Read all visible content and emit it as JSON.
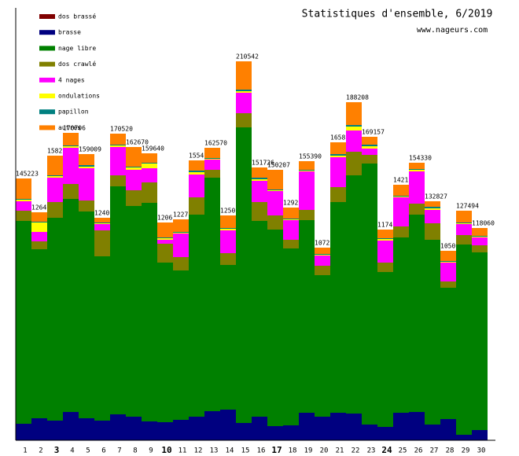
{
  "chart_data": {
    "type": "stacked-bar",
    "title": "Statistiques d'ensemble, 6/2019",
    "subtitle": "www.nageurs.com",
    "categories": [
      "1",
      "2",
      "3",
      "4",
      "5",
      "6",
      "7",
      "8",
      "9",
      "10",
      "11",
      "12",
      "13",
      "14",
      "15",
      "16",
      "17",
      "18",
      "19",
      "20",
      "21",
      "22",
      "23",
      "24",
      "25",
      "26",
      "27",
      "28",
      "29",
      "30"
    ],
    "ylim": [
      0,
      240350
    ],
    "bar_labels": [
      "145223",
      "1264",
      "1582",
      "170706",
      "159009",
      "1240",
      "170520",
      "162670",
      "159640",
      "1206",
      "1227",
      "1554",
      "162570",
      "1250",
      "210542",
      "151726",
      "150207",
      "1292",
      "155390",
      "1072",
      "1658",
      "188208",
      "169157",
      "1174",
      "1421",
      "154330",
      "132827",
      "1050",
      "127494",
      "118060"
    ],
    "series": [
      {
        "name": "dos brassé",
        "color": "#800000",
        "values": [
          0,
          0,
          0,
          0,
          0,
          0,
          0,
          0,
          0,
          0,
          0,
          0,
          0,
          0,
          0,
          0,
          0,
          0,
          0,
          0,
          0,
          0,
          0,
          0,
          0,
          0,
          0,
          0,
          0,
          0
        ]
      },
      {
        "name": "brasse",
        "color": "#000080",
        "values": [
          9177,
          12236,
          10925,
          15732,
          12236,
          10925,
          14421,
          13110,
          10488,
          10051,
          11362,
          13110,
          16169,
          17043,
          9614,
          13110,
          7866,
          8303,
          15295,
          13110,
          15295,
          14858,
          8740,
          7429,
          15295,
          15732,
          8740,
          11799,
          3059,
          5681
        ]
      },
      {
        "name": "nage libre",
        "color": "#008000",
        "values": [
          112746,
          93955,
          112746,
          118427,
          114931,
          91333,
          126730,
          117116,
          121486,
          88711,
          83030,
          112309,
          129789,
          80408,
          164312,
          108813,
          109250,
          98325,
          107065,
          78660,
          117116,
          132411,
          145084,
          86089,
          97451,
          109687,
          102695,
          72979,
          105754,
          98762
        ]
      },
      {
        "name": "dos crawlé",
        "color": "#808000",
        "values": [
          5681,
          4370,
          8740,
          8303,
          6118,
          14421,
          6118,
          8740,
          11362,
          10488,
          7429,
          9614,
          4370,
          6555,
          7866,
          10488,
          7866,
          4807,
          5681,
          5244,
          8303,
          13110,
          4807,
          5244,
          6118,
          6118,
          9177,
          3496,
          5244,
          3933
        ]
      },
      {
        "name": "4 nages",
        "color": "#ff00ff",
        "values": [
          5244,
          5244,
          13547,
          20102,
          17917,
          3496,
          15732,
          11362,
          7866,
          2185,
          13110,
          12673,
          5681,
          12673,
          11362,
          11799,
          13547,
          10925,
          21413,
          5681,
          16606,
          11799,
          3496,
          12236,
          16169,
          17917,
          7429,
          10488,
          6118,
          4370
        ]
      },
      {
        "name": "ondulations",
        "color": "#ffff00",
        "values": [
          874,
          5244,
          874,
          874,
          874,
          437,
          874,
          1311,
          2622,
          874,
          437,
          1311,
          437,
          874,
          874,
          874,
          437,
          437,
          437,
          437,
          874,
          2185,
          1311,
          874,
          437,
          874,
          874,
          437,
          437,
          437
        ]
      },
      {
        "name": "papillon",
        "color": "#008080",
        "values": [
          437,
          437,
          437,
          437,
          874,
          437,
          437,
          437,
          437,
          437,
          437,
          874,
          437,
          437,
          874,
          874,
          437,
          437,
          437,
          437,
          874,
          874,
          874,
          437,
          437,
          437,
          874,
          437,
          437,
          437
        ]
      },
      {
        "name": "autres",
        "color": "#ff8000",
        "values": [
          11362,
          5244,
          10925,
          6992,
          6118,
          2622,
          6118,
          10925,
          5244,
          8303,
          6992,
          5681,
          5681,
          6992,
          15732,
          5681,
          10925,
          6118,
          4807,
          3496,
          6555,
          12673,
          4370,
          4807,
          6118,
          3496,
          3059,
          5681,
          6555,
          4370
        ]
      }
    ]
  }
}
